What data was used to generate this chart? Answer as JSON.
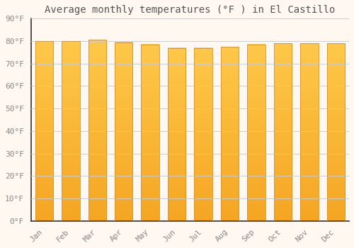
{
  "title": "Average monthly temperatures (°F ) in El Castillo",
  "months": [
    "Jan",
    "Feb",
    "Mar",
    "Apr",
    "May",
    "Jun",
    "Jul",
    "Aug",
    "Sep",
    "Oct",
    "Nov",
    "Dec"
  ],
  "values": [
    80,
    80,
    80.5,
    79.5,
    78.5,
    77,
    77,
    77.5,
    78.5,
    79,
    79,
    79
  ],
  "ylim": [
    0,
    90
  ],
  "yticks": [
    0,
    10,
    20,
    30,
    40,
    50,
    60,
    70,
    80,
    90
  ],
  "ytick_labels": [
    "0°F",
    "10°F",
    "20°F",
    "30°F",
    "40°F",
    "50°F",
    "60°F",
    "70°F",
    "80°F",
    "90°F"
  ],
  "bar_color_bottom": "#F5A623",
  "bar_color_top": "#FFC84A",
  "bar_edge_color": "#D4922A",
  "background_color": "#FFF8F0",
  "grid_color": "#CCCCCC",
  "title_fontsize": 10,
  "tick_fontsize": 8,
  "font_family": "monospace",
  "bar_width": 0.68,
  "spine_color": "#333333",
  "tick_label_color": "#888888"
}
